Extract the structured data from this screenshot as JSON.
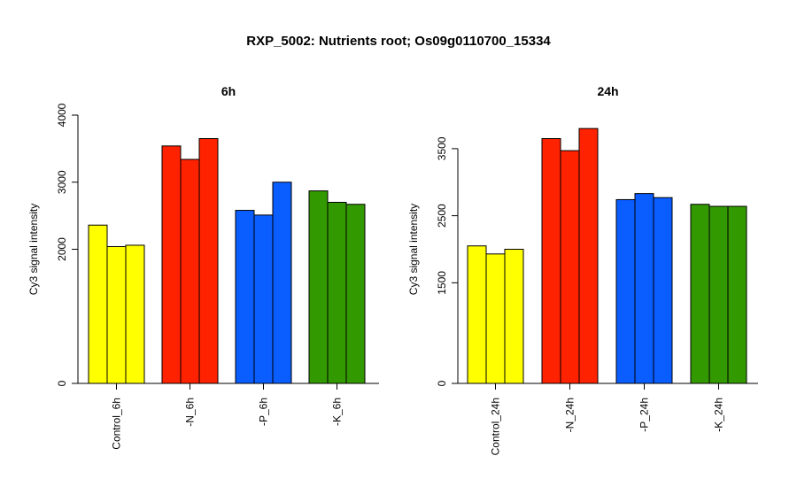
{
  "page": {
    "title": "RXP_5002: Nutrients root; Os09g0110700_15334"
  },
  "colors": {
    "control": "#FFFF00",
    "N": "#FF2200",
    "P": "#0A5DFF",
    "K": "#339900"
  },
  "chart_data": [
    {
      "type": "bar",
      "title": "6h",
      "ylabel": "Cy3 signal intensity",
      "ylim": [
        0,
        4000
      ],
      "yticks": [
        0,
        2000,
        3000,
        4000
      ],
      "ytick_labels": [
        "0",
        "2000",
        "3000",
        "4000"
      ],
      "categories": [
        "Control_6h",
        "-N_6h",
        "-P_6h",
        "-K_6h"
      ],
      "groups": [
        {
          "category": "Control_6h",
          "color": "#FFFF00",
          "values": [
            2360,
            2040,
            2060
          ]
        },
        {
          "category": "-N_6h",
          "color": "#FF2200",
          "values": [
            3540,
            3340,
            3650
          ]
        },
        {
          "category": "-P_6h",
          "color": "#0A5DFF",
          "values": [
            2580,
            2510,
            3000
          ]
        },
        {
          "category": "-K_6h",
          "color": "#339900",
          "values": [
            2870,
            2700,
            2670
          ]
        }
      ]
    },
    {
      "type": "bar",
      "title": "24h",
      "ylabel": "Cy3 signal intensity",
      "ylim": [
        0,
        4000
      ],
      "yticks": [
        0,
        1500,
        2500,
        3500
      ],
      "ytick_labels": [
        "0",
        "1500",
        "2500",
        "3500"
      ],
      "categories": [
        "Control_24h",
        "-N_24h",
        "-P_24h",
        "-K_24h"
      ],
      "groups": [
        {
          "category": "Control_24h",
          "color": "#FFFF00",
          "values": [
            2050,
            1930,
            2000
          ]
        },
        {
          "category": "-N_24h",
          "color": "#FF2200",
          "values": [
            3650,
            3470,
            3800
          ]
        },
        {
          "category": "-P_24h",
          "color": "#0A5DFF",
          "values": [
            2740,
            2830,
            2770
          ]
        },
        {
          "category": "-K_24h",
          "color": "#339900",
          "values": [
            2670,
            2640,
            2640
          ]
        }
      ]
    }
  ]
}
